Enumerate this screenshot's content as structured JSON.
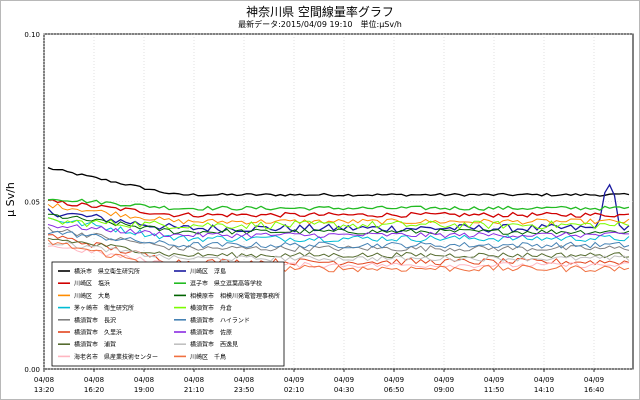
{
  "chart_data": {
    "type": "line",
    "title": "神奈川県 空間線量率グラフ",
    "subtitle": "最新データ:2015/04/09 19:10　単位:μSv/h",
    "ylabel": "μ Sv/h",
    "ylim": [
      0.0,
      0.1
    ],
    "yticks": [
      {
        "value": 0.0,
        "label": "0.00"
      },
      {
        "value": 0.05,
        "label": "0.05"
      },
      {
        "value": 0.1,
        "label": "0.10"
      }
    ],
    "grid": true,
    "legend_position": "bottom-left",
    "x_ticks": [
      {
        "date": "04/08",
        "time": "13:20"
      },
      {
        "date": "04/08",
        "time": "16:20"
      },
      {
        "date": "04/08",
        "time": "19:00"
      },
      {
        "date": "04/08",
        "time": "21:10"
      },
      {
        "date": "04/08",
        "time": "23:50"
      },
      {
        "date": "04/09",
        "time": "02:10"
      },
      {
        "date": "04/09",
        "time": "04:30"
      },
      {
        "date": "04/09",
        "time": "06:50"
      },
      {
        "date": "04/09",
        "time": "09:00"
      },
      {
        "date": "04/09",
        "time": "11:50"
      },
      {
        "date": "04/09",
        "time": "14:10"
      },
      {
        "date": "04/09",
        "time": "16:40"
      }
    ],
    "series": [
      {
        "name": "横浜市　県立衛生研究所",
        "color": "#000000",
        "start": 0.06,
        "mid": 0.052,
        "end": 0.052,
        "noise": 0.0004
      },
      {
        "name": "川崎区　浮島",
        "color": "#1a1aa0",
        "start": 0.047,
        "mid": 0.042,
        "end": 0.042,
        "noise": 0.0012,
        "spike": true
      },
      {
        "name": "川崎区　塩浜",
        "color": "#d00000",
        "start": 0.05,
        "mid": 0.046,
        "end": 0.046,
        "noise": 0.0007
      },
      {
        "name": "逗子市　県立逗葉高等学校",
        "color": "#22bb22",
        "start": 0.051,
        "mid": 0.048,
        "end": 0.048,
        "noise": 0.0006
      },
      {
        "name": "川崎区　大島",
        "color": "#ff8c00",
        "start": 0.049,
        "mid": 0.044,
        "end": 0.044,
        "noise": 0.0008
      },
      {
        "name": "相模原市　相模川発電管理事務所",
        "color": "#006400",
        "start": 0.046,
        "mid": 0.041,
        "end": 0.041,
        "noise": 0.0008
      },
      {
        "name": "茅ヶ崎市　衛生研究所",
        "color": "#00bcd4",
        "start": 0.045,
        "mid": 0.039,
        "end": 0.039,
        "noise": 0.001
      },
      {
        "name": "横須賀市　舟倉",
        "color": "#7cfc00",
        "start": 0.044,
        "mid": 0.043,
        "end": 0.043,
        "noise": 0.0012
      },
      {
        "name": "横須賀市　長沢",
        "color": "#808080",
        "start": 0.042,
        "mid": 0.036,
        "end": 0.036,
        "noise": 0.0009
      },
      {
        "name": "横須賀市　ハイランド",
        "color": "#4682b4",
        "start": 0.041,
        "mid": 0.037,
        "end": 0.037,
        "noise": 0.0009
      },
      {
        "name": "横須賀市　久里浜",
        "color": "#e2451e",
        "start": 0.04,
        "mid": 0.032,
        "end": 0.032,
        "noise": 0.001
      },
      {
        "name": "横須賀市　佐原",
        "color": "#8a2be2",
        "start": 0.043,
        "mid": 0.04,
        "end": 0.04,
        "noise": 0.0008
      },
      {
        "name": "横須賀市　浦賀",
        "color": "#556b2f",
        "start": 0.039,
        "mid": 0.034,
        "end": 0.034,
        "noise": 0.0008
      },
      {
        "name": "横須賀市　西逸見",
        "color": "#c0c0c0",
        "start": 0.038,
        "mid": 0.033,
        "end": 0.033,
        "noise": 0.0008
      },
      {
        "name": "海老名市　県産業技術センター",
        "color": "#ffb6c1",
        "start": 0.037,
        "mid": 0.031,
        "end": 0.031,
        "noise": 0.0008
      },
      {
        "name": "川崎区　千鳥",
        "color": "#f07040",
        "start": 0.038,
        "mid": 0.03,
        "end": 0.03,
        "noise": 0.001
      }
    ]
  }
}
